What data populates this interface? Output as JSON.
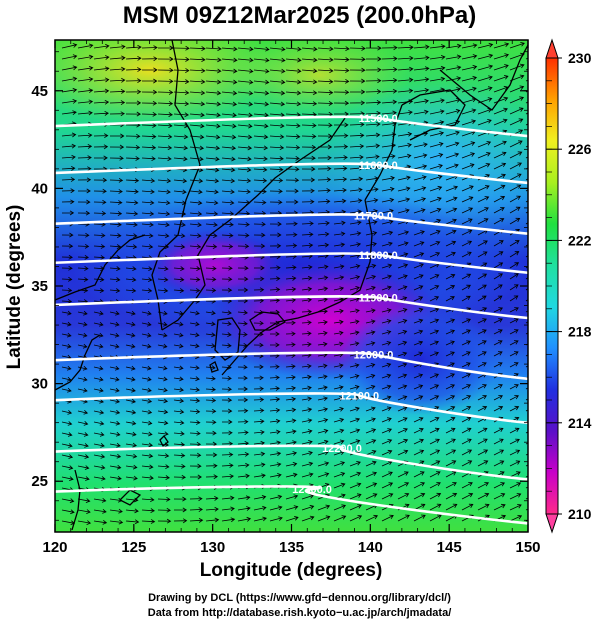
{
  "title": "MSM 09Z12Mar2025 (200.0hPa)",
  "x_axis": {
    "label": "Longitude (degrees)",
    "ticks": [
      120,
      125,
      130,
      135,
      140,
      145,
      150
    ],
    "range": [
      120,
      150
    ]
  },
  "y_axis": {
    "label": "Latitude  (degrees)",
    "ticks": [
      25,
      30,
      35,
      40,
      45
    ],
    "range": [
      22.4,
      47.6
    ]
  },
  "colorbar": {
    "min": 210,
    "max": 230,
    "ticks": [
      210,
      214,
      218,
      222,
      226,
      230
    ],
    "colors": [
      "#ff2a8a",
      "#c800c8",
      "#5a10c8",
      "#2030e0",
      "#2090ff",
      "#20d8e0",
      "#20e0a0",
      "#20e040",
      "#a8f020",
      "#f0f020",
      "#ffa000",
      "#ff3000"
    ]
  },
  "contours": [
    {
      "label": "11500.0",
      "label_lon": 140.5,
      "label_lat": 43.6
    },
    {
      "label": "11600.0",
      "label_lon": 140.5,
      "label_lat": 41.2
    },
    {
      "label": "11700.0",
      "label_lon": 140.2,
      "label_lat": 38.6
    },
    {
      "label": "11800.0",
      "label_lon": 140.5,
      "label_lat": 36.6
    },
    {
      "label": "11900.0",
      "label_lon": 140.5,
      "label_lat": 34.4
    },
    {
      "label": "12000.0",
      "label_lon": 140.2,
      "label_lat": 31.5
    },
    {
      "label": "12100.0",
      "label_lon": 139.3,
      "label_lat": 29.4
    },
    {
      "label": "12200.0",
      "label_lon": 138.2,
      "label_lat": 26.7
    },
    {
      "label": "12300.0",
      "label_lon": 136.3,
      "label_lat": 24.6
    }
  ],
  "credits": {
    "line1": "Drawing by DCL (https://www.gfd−dennou.org/library/dcl/)",
    "line2": "Data from http://database.rish.kyoto−u.ac.jp/arch/jmadata/"
  }
}
